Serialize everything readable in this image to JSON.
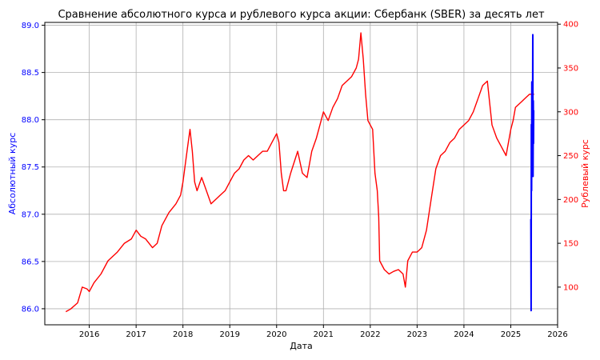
{
  "chart_data": {
    "type": "line",
    "title": "Сравнение абсолютного курса и рублевого курса акции: Сбербанк (SBER) за десять лет",
    "xlabel": "Дата",
    "ylabel_left": "Абсолютный курс",
    "ylabel_right": "Рублевый курс",
    "xlim": [
      2015.05,
      2026.0
    ],
    "ylim_left": [
      85.83,
      89.03
    ],
    "ylim_right": [
      57,
      402
    ],
    "x_ticks": [
      "2016",
      "2017",
      "2018",
      "2019",
      "2020",
      "2021",
      "2022",
      "2023",
      "2024",
      "2025",
      "2026"
    ],
    "y_left_ticks": [
      "86.0",
      "86.5",
      "87.0",
      "87.5",
      "88.0",
      "88.5",
      "89.0"
    ],
    "y_right_ticks": [
      "100",
      "150",
      "200",
      "250",
      "300",
      "350",
      "400"
    ],
    "grid": true,
    "colors": {
      "left_axis": "#0000ff",
      "right_axis": "#ff0000",
      "grid": "#b0b0b0"
    },
    "series": [
      {
        "axis": "right",
        "color": "#ff0000",
        "x": [
          2015.5,
          2015.6,
          2015.75,
          2015.85,
          2015.95,
          2016.0,
          2016.1,
          2016.25,
          2016.4,
          2016.5,
          2016.6,
          2016.75,
          2016.9,
          2017.0,
          2017.1,
          2017.2,
          2017.35,
          2017.45,
          2017.55,
          2017.7,
          2017.85,
          2017.95,
          2018.0,
          2018.05,
          2018.1,
          2018.15,
          2018.2,
          2018.25,
          2018.3,
          2018.4,
          2018.5,
          2018.6,
          2018.7,
          2018.8,
          2018.9,
          2019.0,
          2019.1,
          2019.2,
          2019.3,
          2019.4,
          2019.5,
          2019.6,
          2019.7,
          2019.8,
          2019.9,
          2020.0,
          2020.05,
          2020.1,
          2020.15,
          2020.2,
          2020.3,
          2020.45,
          2020.55,
          2020.65,
          2020.75,
          2020.85,
          2020.95,
          2021.0,
          2021.1,
          2021.2,
          2021.3,
          2021.4,
          2021.5,
          2021.6,
          2021.7,
          2021.75,
          2021.8,
          2021.85,
          2021.9,
          2021.95,
          2022.0,
          2022.05,
          2022.1,
          2022.15,
          2022.18,
          2022.2,
          2022.3,
          2022.4,
          2022.5,
          2022.6,
          2022.7,
          2022.75,
          2022.8,
          2022.9,
          2023.0,
          2023.1,
          2023.2,
          2023.3,
          2023.4,
          2023.5,
          2023.6,
          2023.7,
          2023.8,
          2023.9,
          2024.0,
          2024.1,
          2024.2,
          2024.3,
          2024.4,
          2024.5,
          2024.6,
          2024.7,
          2024.8,
          2024.9,
          2025.0,
          2025.05,
          2025.1,
          2025.2,
          2025.3,
          2025.4,
          2025.5
        ],
        "y": [
          72,
          75,
          82,
          100,
          98,
          95,
          105,
          115,
          130,
          135,
          140,
          150,
          155,
          165,
          158,
          155,
          145,
          150,
          170,
          185,
          195,
          205,
          220,
          240,
          260,
          280,
          255,
          220,
          210,
          225,
          210,
          195,
          200,
          205,
          210,
          220,
          230,
          235,
          245,
          250,
          245,
          250,
          255,
          255,
          265,
          275,
          265,
          230,
          210,
          210,
          230,
          255,
          230,
          225,
          255,
          270,
          290,
          300,
          290,
          305,
          315,
          330,
          335,
          340,
          350,
          360,
          390,
          360,
          320,
          290,
          285,
          280,
          230,
          210,
          180,
          130,
          120,
          115,
          118,
          120,
          115,
          100,
          130,
          140,
          140,
          145,
          165,
          200,
          235,
          250,
          255,
          265,
          270,
          280,
          285,
          290,
          300,
          315,
          330,
          335,
          285,
          270,
          260,
          250,
          280,
          290,
          305,
          310,
          315,
          320,
          320
        ]
      },
      {
        "axis": "left",
        "color": "#0000ff",
        "x": [
          2025.43,
          2025.435,
          2025.44,
          2025.445,
          2025.45,
          2025.455,
          2025.46,
          2025.465,
          2025.47,
          2025.475,
          2025.48,
          2025.485,
          2025.49
        ],
        "y": [
          86.95,
          85.98,
          87.95,
          87.25,
          88.4,
          87.5,
          88.1,
          87.8,
          88.9,
          87.4,
          88.2,
          87.75,
          88.1
        ]
      }
    ]
  }
}
